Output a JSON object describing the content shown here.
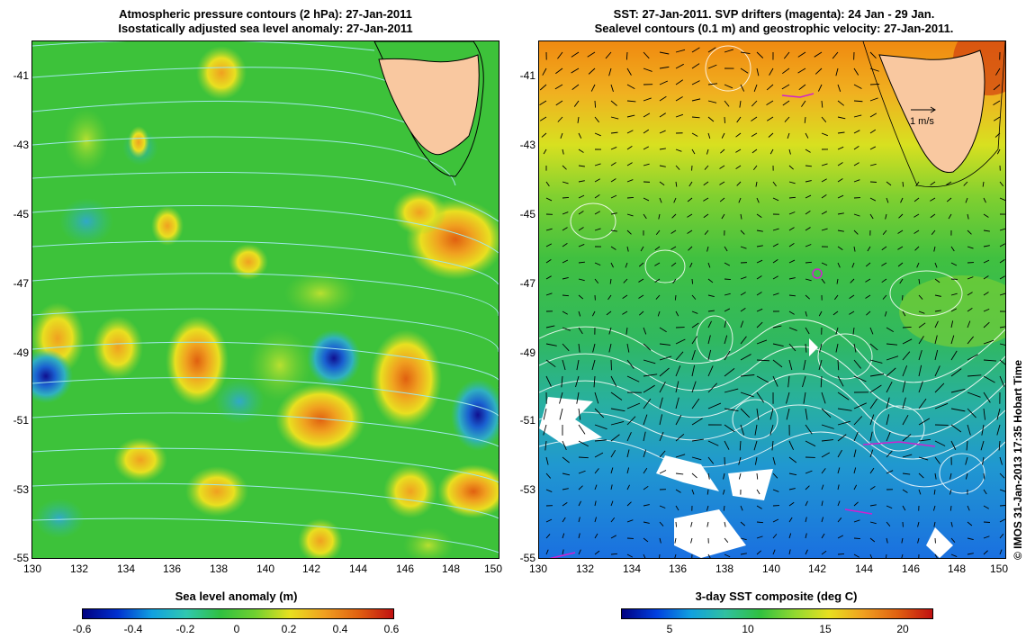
{
  "left_panel": {
    "title_line1": "Atmospheric pressure contours (2 hPa): 27-Jan-2011",
    "title_line2": "Isostatically adjusted sea level anomaly: 27-Jan-2011",
    "x_ticks": [
      "130",
      "132",
      "134",
      "136",
      "138",
      "140",
      "142",
      "144",
      "146",
      "148",
      "150"
    ],
    "y_ticks": [
      "-41",
      "-43",
      "-45",
      "-47",
      "-49",
      "-51",
      "-53",
      "-55"
    ],
    "colorbar_label": "Sea level anomaly (m)",
    "colorbar_ticks": [
      "-0.6",
      "-0.4",
      "-0.2",
      "0",
      "0.2",
      "0.4",
      "0.6"
    ],
    "colorbar_range": [
      -0.6,
      0.6
    ]
  },
  "right_panel": {
    "title_line1": "SST: 27-Jan-2011. SVP drifters (magenta): 24 Jan - 29 Jan.",
    "title_line2": "Sealevel contours (0.1 m) and geostrophic velocity: 27-Jan-2011.",
    "x_ticks": [
      "130",
      "132",
      "134",
      "136",
      "138",
      "140",
      "142",
      "144",
      "146",
      "148",
      "150"
    ],
    "y_ticks": [
      "-41",
      "-43",
      "-45",
      "-47",
      "-49",
      "-51",
      "-53",
      "-55"
    ],
    "velocity_scale_label": "1 m/s",
    "colorbar_label": "3-day SST composite (deg C)",
    "colorbar_ticks": [
      "5",
      "10",
      "15",
      "20"
    ],
    "colorbar_range": [
      2,
      22
    ]
  },
  "credit": "© IMOS 31-Jan-2013 17:35 Hobart Time",
  "map_extent": {
    "lon": [
      130,
      150
    ],
    "lat": [
      -55,
      -40.2
    ]
  },
  "colors": {
    "land": "#f9c8a0",
    "sla_background": "#3dc23a",
    "pressure_contour": "#9fe8e8",
    "sst_warm": "#f08a10",
    "sst_cold": "#1e88e0",
    "drifter": "#d020d0"
  }
}
